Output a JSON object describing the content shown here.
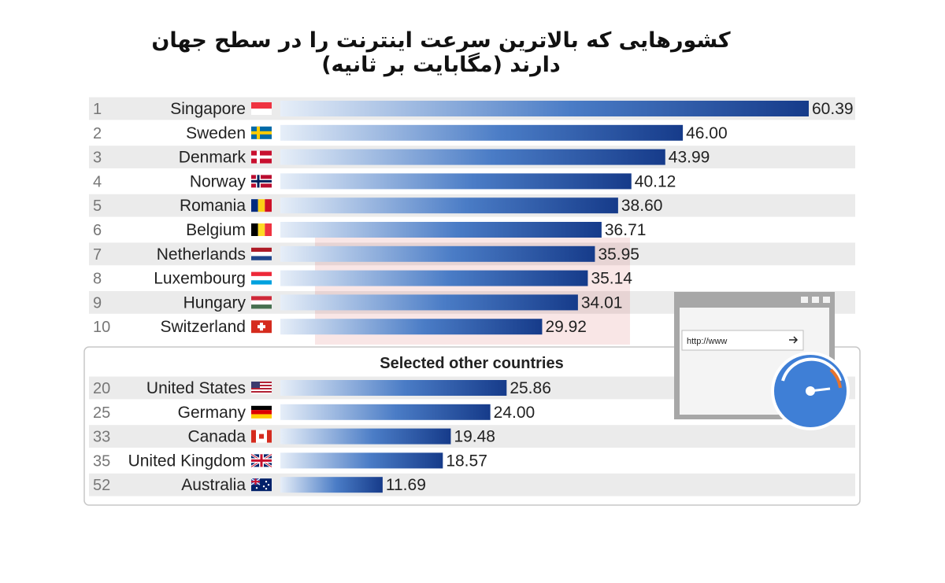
{
  "title": "کشورهایی که بالاترین سرعت اینترنت را در سطح جهان دارند (مگابایت بر ثانیه)",
  "chart_data": {
    "type": "bar",
    "orientation": "horizontal",
    "xlim": [
      0,
      60.39
    ],
    "grid": false,
    "top": [
      {
        "rank": "1",
        "country": "Singapore",
        "value": 60.39,
        "value_label": "60.39",
        "flag": "singapore-flag"
      },
      {
        "rank": "2",
        "country": "Sweden",
        "value": 46.0,
        "value_label": "46.00",
        "flag": "sweden-flag"
      },
      {
        "rank": "3",
        "country": "Denmark",
        "value": 43.99,
        "value_label": "43.99",
        "flag": "denmark-flag"
      },
      {
        "rank": "4",
        "country": "Norway",
        "value": 40.12,
        "value_label": "40.12",
        "flag": "norway-flag"
      },
      {
        "rank": "5",
        "country": "Romania",
        "value": 38.6,
        "value_label": "38.60",
        "flag": "romania-flag"
      },
      {
        "rank": "6",
        "country": "Belgium",
        "value": 36.71,
        "value_label": "36.71",
        "flag": "belgium-flag"
      },
      {
        "rank": "7",
        "country": "Netherlands",
        "value": 35.95,
        "value_label": "35.95",
        "flag": "netherlands-flag"
      },
      {
        "rank": "8",
        "country": "Luxembourg",
        "value": 35.14,
        "value_label": "35.14",
        "flag": "luxembourg-flag"
      },
      {
        "rank": "9",
        "country": "Hungary",
        "value": 34.01,
        "value_label": "34.01",
        "flag": "hungary-flag"
      },
      {
        "rank": "10",
        "country": "Switzerland",
        "value": 29.92,
        "value_label": "29.92",
        "flag": "switzerland-flag"
      }
    ],
    "selected_heading": "Selected other countries",
    "selected": [
      {
        "rank": "20",
        "country": "United States",
        "value": 25.86,
        "value_label": "25.86",
        "flag": "usa-flag"
      },
      {
        "rank": "25",
        "country": "Germany",
        "value": 24.0,
        "value_label": "24.00",
        "flag": "germany-flag"
      },
      {
        "rank": "33",
        "country": "Canada",
        "value": 19.48,
        "value_label": "19.48",
        "flag": "canada-flag"
      },
      {
        "rank": "35",
        "country": "United Kingdom",
        "value": 18.57,
        "value_label": "18.57",
        "flag": "uk-flag"
      },
      {
        "rank": "52",
        "country": "Australia",
        "value": 11.69,
        "value_label": "11.69",
        "flag": "australia-flag"
      }
    ]
  },
  "illustration": {
    "url_text": "http://www",
    "icon": "speedometer-browser-icon"
  },
  "colors": {
    "bar_dark": "#163b8a",
    "bar_light": "#e6eef8",
    "stripe": "#ebebeb",
    "watermark": "#d23a3a"
  }
}
